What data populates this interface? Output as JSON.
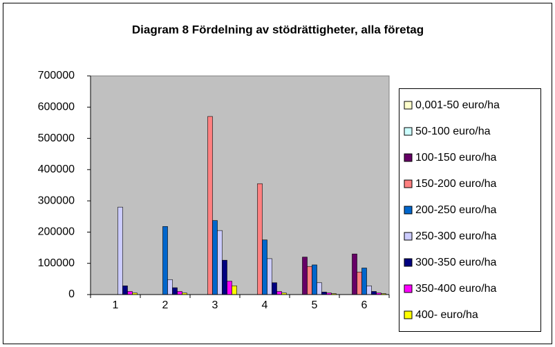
{
  "chart_data": {
    "type": "bar",
    "title": "Diagram 8 Fördelning av stödrättigheter, alla företag",
    "categories": [
      "1",
      "2",
      "3",
      "4",
      "5",
      "6"
    ],
    "series": [
      {
        "name": "0,001-50 euro/ha",
        "color": "#ffffcc",
        "values": [
          0,
          0,
          0,
          0,
          0,
          0
        ]
      },
      {
        "name": "50-100 euro/ha",
        "color": "#ccffff",
        "values": [
          0,
          0,
          0,
          0,
          0,
          0
        ]
      },
      {
        "name": "100-150 euro/ha",
        "color": "#660066",
        "values": [
          0,
          0,
          0,
          0,
          120000,
          130000
        ]
      },
      {
        "name": "150-200 euro/ha",
        "color": "#ff8080",
        "values": [
          0,
          0,
          570000,
          355000,
          90000,
          72000
        ]
      },
      {
        "name": "200-250 euro/ha",
        "color": "#0066cc",
        "values": [
          0,
          218000,
          237000,
          175000,
          95000,
          85000
        ]
      },
      {
        "name": "250-300 euro/ha",
        "color": "#ccccff",
        "values": [
          280000,
          48000,
          205000,
          115000,
          38000,
          28000
        ]
      },
      {
        "name": "300-350 euro/ha",
        "color": "#000080",
        "values": [
          28000,
          22000,
          110000,
          38000,
          8000,
          10000
        ]
      },
      {
        "name": "350-400 euro/ha",
        "color": "#ff00ff",
        "values": [
          10000,
          10000,
          43000,
          10000,
          5000,
          5000
        ]
      },
      {
        "name": "400-  euro/ha",
        "color": "#ffff00",
        "values": [
          5000,
          5000,
          28000,
          5000,
          3000,
          3000
        ]
      }
    ],
    "ylim": [
      0,
      700000
    ],
    "yticks": [
      0,
      100000,
      200000,
      300000,
      400000,
      500000,
      600000,
      700000
    ],
    "grid": false,
    "legend": "right"
  }
}
